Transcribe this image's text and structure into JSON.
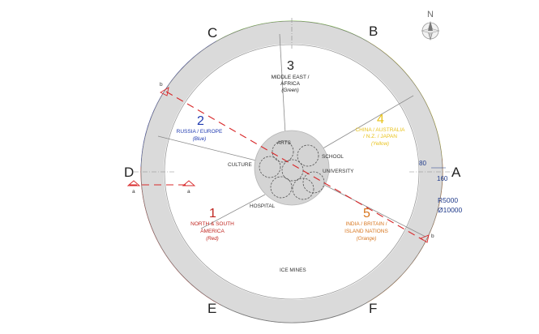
{
  "compass": {
    "label": "N",
    "icon": "north-arrow-icon"
  },
  "points": {
    "A": "A",
    "B": "B",
    "C": "C",
    "D": "D",
    "E": "E",
    "F": "F"
  },
  "sections": [
    {
      "id": "1",
      "number": "1",
      "lines": [
        "NORTH & SOUTH",
        "AMERICA"
      ],
      "sub": "(Red)",
      "color": "#c0251f"
    },
    {
      "id": "2",
      "number": "2",
      "lines": [
        "RUSSIA / EUROPE"
      ],
      "sub": "(Blue)",
      "color": "#1f3ab0"
    },
    {
      "id": "3",
      "number": "3",
      "lines": [
        "MIDDLE EAST /",
        "AFRICA"
      ],
      "sub": "(Green)",
      "color": "#222222"
    },
    {
      "id": "4",
      "number": "4",
      "lines": [
        "CHINA / AUSTRALIA",
        "/ N.Z. / JAPAN"
      ],
      "sub": "(Yellow)",
      "color": "#e8c21a"
    },
    {
      "id": "5",
      "number": "5",
      "lines": [
        "INDIA / BRITAIN /",
        "ISLAND NATIONS"
      ],
      "sub": "(Orange)",
      "color": "#d7751d"
    }
  ],
  "inner_labels": {
    "arts": "ARTS",
    "culture": "CULTURE",
    "school": "SCHOOL",
    "university": "UNIVERSITY",
    "hospital": "HOSPITAL",
    "ice_mines": "ICE MINES"
  },
  "dimensions": {
    "d80": "80",
    "d160": "160",
    "radius": "R5000",
    "diameter": "Ø10000"
  },
  "section_marks": {
    "b_top": "b",
    "b_bottom": "b",
    "a_left": "a",
    "a_right": "a"
  },
  "colors": {
    "red": "#c8261f",
    "blue": "#1f33c9",
    "green": "#7fd63a",
    "yellow": "#f2e21e",
    "orange": "#df7a1f",
    "gray": "#6e6e6e",
    "ring": "#d9d9d9",
    "section_line": "#d8292b"
  }
}
